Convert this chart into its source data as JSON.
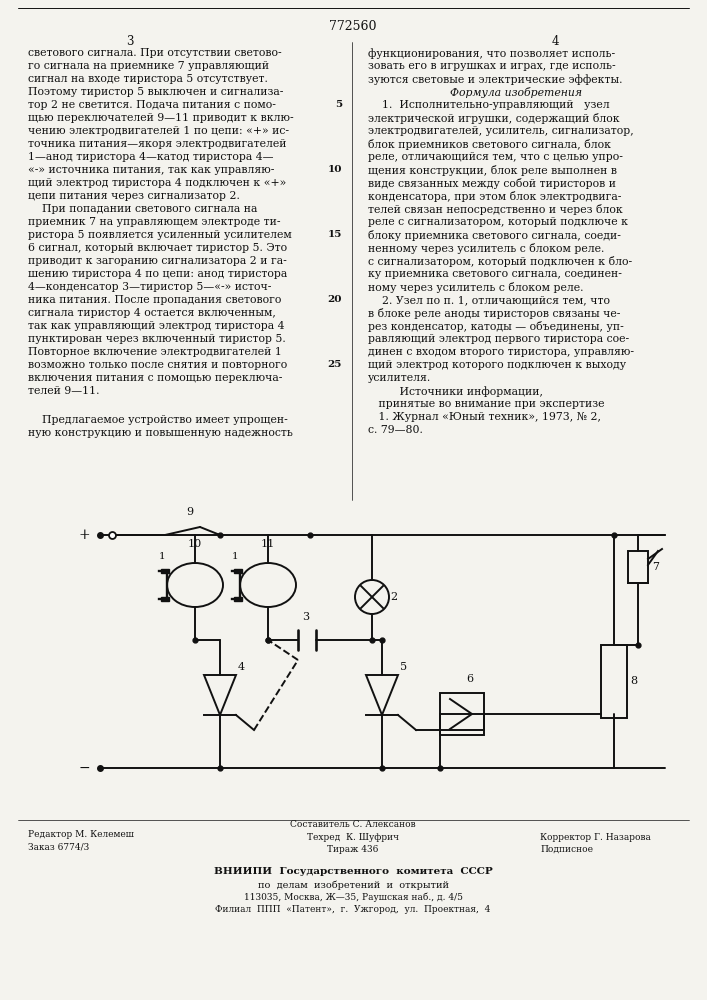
{
  "patent_number": "772560",
  "page_left": "3",
  "page_right": "4",
  "bg_color": "#f4f3ee",
  "text_color": "#111111",
  "left_col": [
    "светового сигнала. При отсутствии светово-",
    "го сигнала на приемнике 7 управляющий",
    "сигнал на входе тиристора 5 отсутствует.",
    "Поэтому тиристор 5 выключен и сигнализа-",
    "тор 2 не светится. Подача питания с помо-",
    "щью переключателей 9—11 приводит к вклю-",
    "чению электродвигателей 1 по цепи: «+» ис-",
    "точника питания—якоря электродвигателей",
    "1—анод тиристора 4—катод тиристора 4—",
    "«-» источника питания, так как управляю-",
    "щий электрод тиристора 4 подключен к «+»",
    "цепи питания через сигнализатор 2.",
    "    При попадании светового сигнала на",
    "приемник 7 на управляющем электроде ти-",
    "ристора 5 появляется усиленный усилителем",
    "6 сигнал, который включает тиристор 5. Это",
    "приводит к загоранию сигнализатора 2 и га-",
    "шению тиристора 4 по цепи: анод тиристора",
    "4—конденсатор 3—тиристор 5—«-» источ-",
    "ника питания. После пропадания светового",
    "сигнала тиристор 4 остается включенным,",
    "так как управляющий электрод тиристора 4",
    "пунктирован через включенный тиристор 5.",
    "Повторное включение электродвигателей 1",
    "возможно только после снятия и повторного",
    "включения питания с помощью переключа-",
    "телей 9—11."
  ],
  "left_col_para2": [
    "    Предлагаемое устройство имеет упрощен-",
    "ную конструкцию и повышенную надежность"
  ],
  "right_col": [
    "функционирования, что позволяет исполь-",
    "зовать его в игрушках и играх, где исполь-",
    "зуются световые и электрические эффекты.",
    "        Формула изобретения",
    "    1.  Исполнительно-управляющий   узел",
    "электрической игрушки, содержащий блок",
    "электродвигателей, усилитель, сигнализатор,",
    "блок приемников светового сигнала, блок",
    "реле, отличающийся тем, что с целью упро-",
    "щения конструкции, блок реле выполнен в",
    "виде связанных между собой тиристоров и",
    "конденсатора, при этом блок электродвига-",
    "телей связан непосредственно и через блок",
    "реле с сигнализатором, который подключе к",
    "блоку приемника светового сигнала, соеди-",
    "ненному через усилитель с блоком реле.",
    "с сигнализатором, который подключен к бло-",
    "ку приемника светового сигнала, соединен-",
    "ному через усилитель с блоком реле.",
    "    2. Узел по п. 1, отличающийся тем, что",
    "в блоке реле аноды тиристоров связаны че-",
    "рез конденсатор, катоды — объединены, уп-",
    "равляющий электрод первого тиристора сое-",
    "динен с входом второго тиристора, управляю-",
    "щий электрод которого подключен к выходу",
    "усилителя.",
    "         Источники информации,",
    "   принятые во внимание при экспертизе",
    "   1. Журнал «Юный техник», 1973, № 2,",
    "с. 79—80."
  ],
  "line_numbers": [
    [
      5,
      4
    ],
    [
      10,
      9
    ],
    [
      15,
      14
    ],
    [
      20,
      19
    ],
    [
      25,
      24
    ]
  ],
  "footer_editor": "Редактор М. Келемеш",
  "footer_composer": "Составитель С. Алексанов",
  "footer_order": "Заказ 6774/3",
  "footer_tech": "Техред  К. Шуфрич",
  "footer_corrector": "Корректор Г. Назарова",
  "footer_edition": "Тираж 436",
  "footer_subscription": "Подписное",
  "footer_org1": "ВНИИПИ  Государственного  комитета  СССР",
  "footer_org2": "по  делам  изобретений  и  открытий",
  "footer_org3": "113035, Москва, Ж—35, Раушская наб., д. 4/5",
  "footer_org4": "Филиал  ППП  «Патент»,  г.  Ужгород,  ул.  Проектная,  4"
}
